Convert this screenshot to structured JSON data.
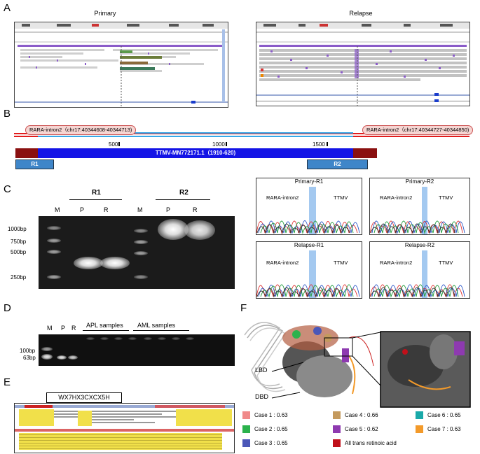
{
  "panels": {
    "A": "A",
    "B": "B",
    "C": "C",
    "D": "D",
    "E": "E",
    "F": "F"
  },
  "panel_a": {
    "primary_title": "Primary",
    "relapse_title": "Relapse"
  },
  "panel_b": {
    "left_intron": "RARA-intron2（chr17:40344608-40344713)",
    "right_intron": "RARA-intron2（chr17:40344727-40344850)",
    "tick1": "500",
    "tick2": "1000",
    "tick3": "1500",
    "virus_label": "TTMV-MN772171.1（1910-620)",
    "r1": "R1",
    "r2": "R2"
  },
  "panel_c_gel": {
    "r1": "R1",
    "r2": "R2",
    "lanes": [
      "M",
      "P",
      "R",
      "M",
      "P",
      "R"
    ],
    "ladder": [
      "1000bp",
      "750bp",
      "500bp",
      "250bp"
    ]
  },
  "panel_c_chrom": [
    {
      "title": "Primary-R1",
      "left": "RARA-intron2",
      "right": "TTMV"
    },
    {
      "title": "Primary-R2",
      "left": "RARA-intron2",
      "right": "TTMV"
    },
    {
      "title": "Relapse-R1",
      "left": "RARA-intron2",
      "right": "TTMV"
    },
    {
      "title": "Relapse-R2",
      "left": "RARA-intron2",
      "right": "TTMV"
    }
  ],
  "panel_d": {
    "lanes": [
      "M",
      "P",
      "R"
    ],
    "apl": "APL samples",
    "aml": "AML samples",
    "ladder": [
      "100bp",
      "63bp"
    ]
  },
  "panel_e": {
    "motif": "WX7HX3CXCX5H"
  },
  "panel_f": {
    "lbd": "LBD",
    "dbd": "DBD",
    "legend": [
      {
        "label": "Case 1 : 0.63",
        "color": "#f08a8a"
      },
      {
        "label": "Case 4 : 0.66",
        "color": "#c49a5e"
      },
      {
        "label": "Case 6 : 0.65",
        "color": "#1aa9a9"
      },
      {
        "label": "Case 2 : 0.65",
        "color": "#2bb24c"
      },
      {
        "label": "Case 5 : 0.62",
        "color": "#8e3ab0"
      },
      {
        "label": "Case 7 : 0.63",
        "color": "#f39a2a"
      },
      {
        "label": "Case 3 : 0.65",
        "color": "#4b57b8"
      },
      {
        "label": "All trans retinoic acid",
        "color": "#c0101a"
      }
    ]
  }
}
